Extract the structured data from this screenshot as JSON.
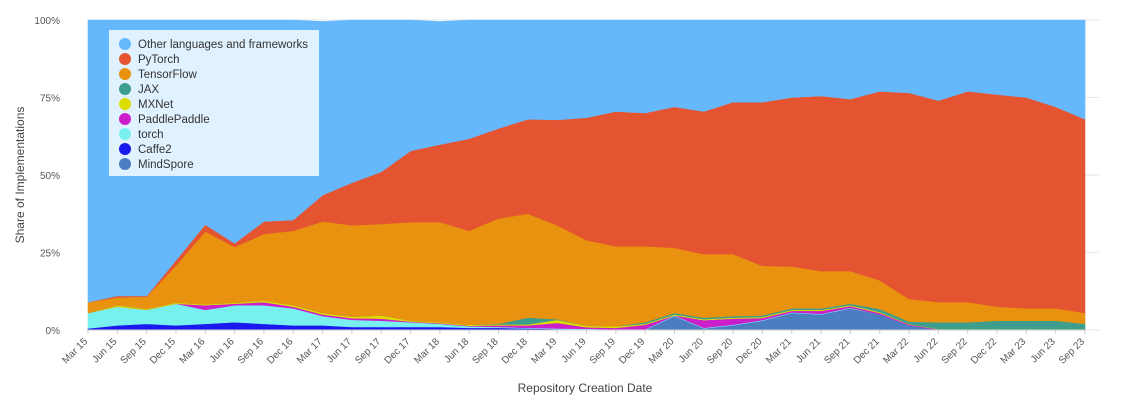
{
  "chart_data": {
    "type": "area",
    "stacked": true,
    "normalized": true,
    "xlabel": "Repository Creation Date",
    "ylabel": "Share of Implementations",
    "ylim": [
      0,
      100
    ],
    "y_ticks": [
      "0%",
      "25%",
      "50%",
      "75%",
      "100%"
    ],
    "grid": true,
    "legend_position": "top-left",
    "categories": [
      "Mar 15",
      "Jun 15",
      "Sep 15",
      "Dec 15",
      "Mar 16",
      "Jun 16",
      "Sep 16",
      "Dec 16",
      "Mar 17",
      "Jun 17",
      "Sep 17",
      "Dec 17",
      "Mar 18",
      "Jun 18",
      "Sep 18",
      "Dec 18",
      "Mar 19",
      "Jun 19",
      "Sep 19",
      "Dec 19",
      "Mar 20",
      "Jun 20",
      "Sep 20",
      "Dec 20",
      "Mar 21",
      "Jun 21",
      "Sep 21",
      "Dec 21",
      "Mar 22",
      "Jun 22",
      "Sep 22",
      "Dec 22",
      "Mar 23",
      "Jun 23",
      "Sep 23"
    ],
    "series": [
      {
        "name": "MindSpore",
        "color": "#4a7ec0",
        "values": [
          0,
          0,
          0,
          0,
          0,
          0,
          0,
          0,
          0,
          0,
          0,
          0,
          0,
          0,
          0,
          0,
          0,
          0,
          0,
          0,
          4.5,
          0.5,
          1.5,
          3,
          5.5,
          5,
          7,
          5,
          1.5,
          0,
          0,
          0,
          0,
          0,
          0
        ]
      },
      {
        "name": "Caffe2",
        "color": "#1a1aee",
        "values": [
          0.5,
          1.5,
          2,
          1.5,
          2,
          2.5,
          2,
          1.5,
          1.5,
          1,
          1,
          1,
          1,
          0.7,
          0.7,
          0.5,
          0.3,
          0.2,
          0,
          0,
          0,
          0,
          0,
          0,
          0,
          0,
          0,
          0,
          0,
          0,
          0,
          0,
          0,
          0,
          0
        ]
      },
      {
        "name": "torch",
        "color": "#78f0f0",
        "values": [
          5,
          6,
          4.5,
          7,
          4.5,
          5.5,
          6,
          5.5,
          3,
          2.3,
          2,
          1.5,
          1,
          0.5,
          0.3,
          0.2,
          0.2,
          0.2,
          0.2,
          0.2,
          0.2,
          0.2,
          0.2,
          0.2,
          0.2,
          0.2,
          0.2,
          0,
          0,
          0,
          0,
          0,
          0,
          0,
          0
        ]
      },
      {
        "name": "PaddlePaddle",
        "color": "#cc1fcc",
        "values": [
          0,
          0,
          0,
          0,
          1.5,
          0.5,
          1,
          0.5,
          0.5,
          0.5,
          0.7,
          0.2,
          0.2,
          0.2,
          0.5,
          0.8,
          1.8,
          0.5,
          0.5,
          1.5,
          0,
          2.5,
          2,
          0.7,
          0.5,
          1,
          0.5,
          0.5,
          0.3,
          0.2,
          0.2,
          0.2,
          0.2,
          0.2,
          0.2
        ]
      },
      {
        "name": "MXNet",
        "color": "#dddd00",
        "values": [
          0,
          0.5,
          0.3,
          0.3,
          0.3,
          0.3,
          0.5,
          0.5,
          0.5,
          0.5,
          1,
          0.3,
          0.3,
          0.3,
          0.3,
          0.3,
          1,
          0.5,
          0.5,
          0.3,
          0.3,
          0.3,
          0.3,
          0.3,
          0.3,
          0.3,
          0.3,
          0.3,
          0.1,
          0.1,
          0.1,
          0.1,
          0.1,
          0.1,
          0.1
        ]
      },
      {
        "name": "JAX",
        "color": "#3d9e8e",
        "values": [
          0,
          0,
          0,
          0,
          0,
          0,
          0,
          0,
          0,
          0,
          0,
          0,
          0,
          0,
          0.2,
          2.2,
          0.2,
          0,
          0,
          0.5,
          0.5,
          0.5,
          0.5,
          0.5,
          0.5,
          0.5,
          0.5,
          1,
          0.8,
          2.2,
          2.2,
          2.7,
          2.7,
          2.7,
          1.7
        ]
      },
      {
        "name": "TensorFlow",
        "color": "#e8920f",
        "values": [
          3.5,
          2.5,
          4,
          12,
          23.5,
          18,
          21.5,
          24,
          29.5,
          29.5,
          29.5,
          31.8,
          32.3,
          30.3,
          34,
          33.5,
          30.3,
          27.6,
          25.8,
          24.5,
          21,
          20.5,
          20,
          16,
          13.5,
          12,
          10.5,
          9.2,
          7.3,
          6.5,
          6.5,
          4.5,
          4,
          4,
          3.5
        ]
      },
      {
        "name": "PyTorch",
        "color": "#e55431",
        "values": [
          0,
          0.5,
          0.2,
          1.7,
          2.2,
          1.2,
          4,
          3.5,
          8.5,
          13.7,
          16.8,
          23,
          25,
          29.7,
          29,
          30.5,
          34,
          39.5,
          43.5,
          43,
          45.5,
          46,
          49,
          52.8,
          54.5,
          56.5,
          55.5,
          61,
          66.5,
          65,
          68,
          68.5,
          68,
          65,
          62.5
        ]
      },
      {
        "name": "Other languages and frameworks",
        "color": "#66b8fc",
        "values": [
          91,
          89,
          89,
          77.5,
          66,
          72,
          65,
          64.5,
          56,
          52.5,
          49,
          42.2,
          39.7,
          38.3,
          35,
          32,
          32.2,
          31.5,
          29.5,
          30,
          28,
          29.5,
          26.5,
          26.5,
          25,
          24.5,
          25.5,
          23,
          23.5,
          26,
          23,
          24,
          25,
          28,
          32
        ]
      }
    ]
  }
}
